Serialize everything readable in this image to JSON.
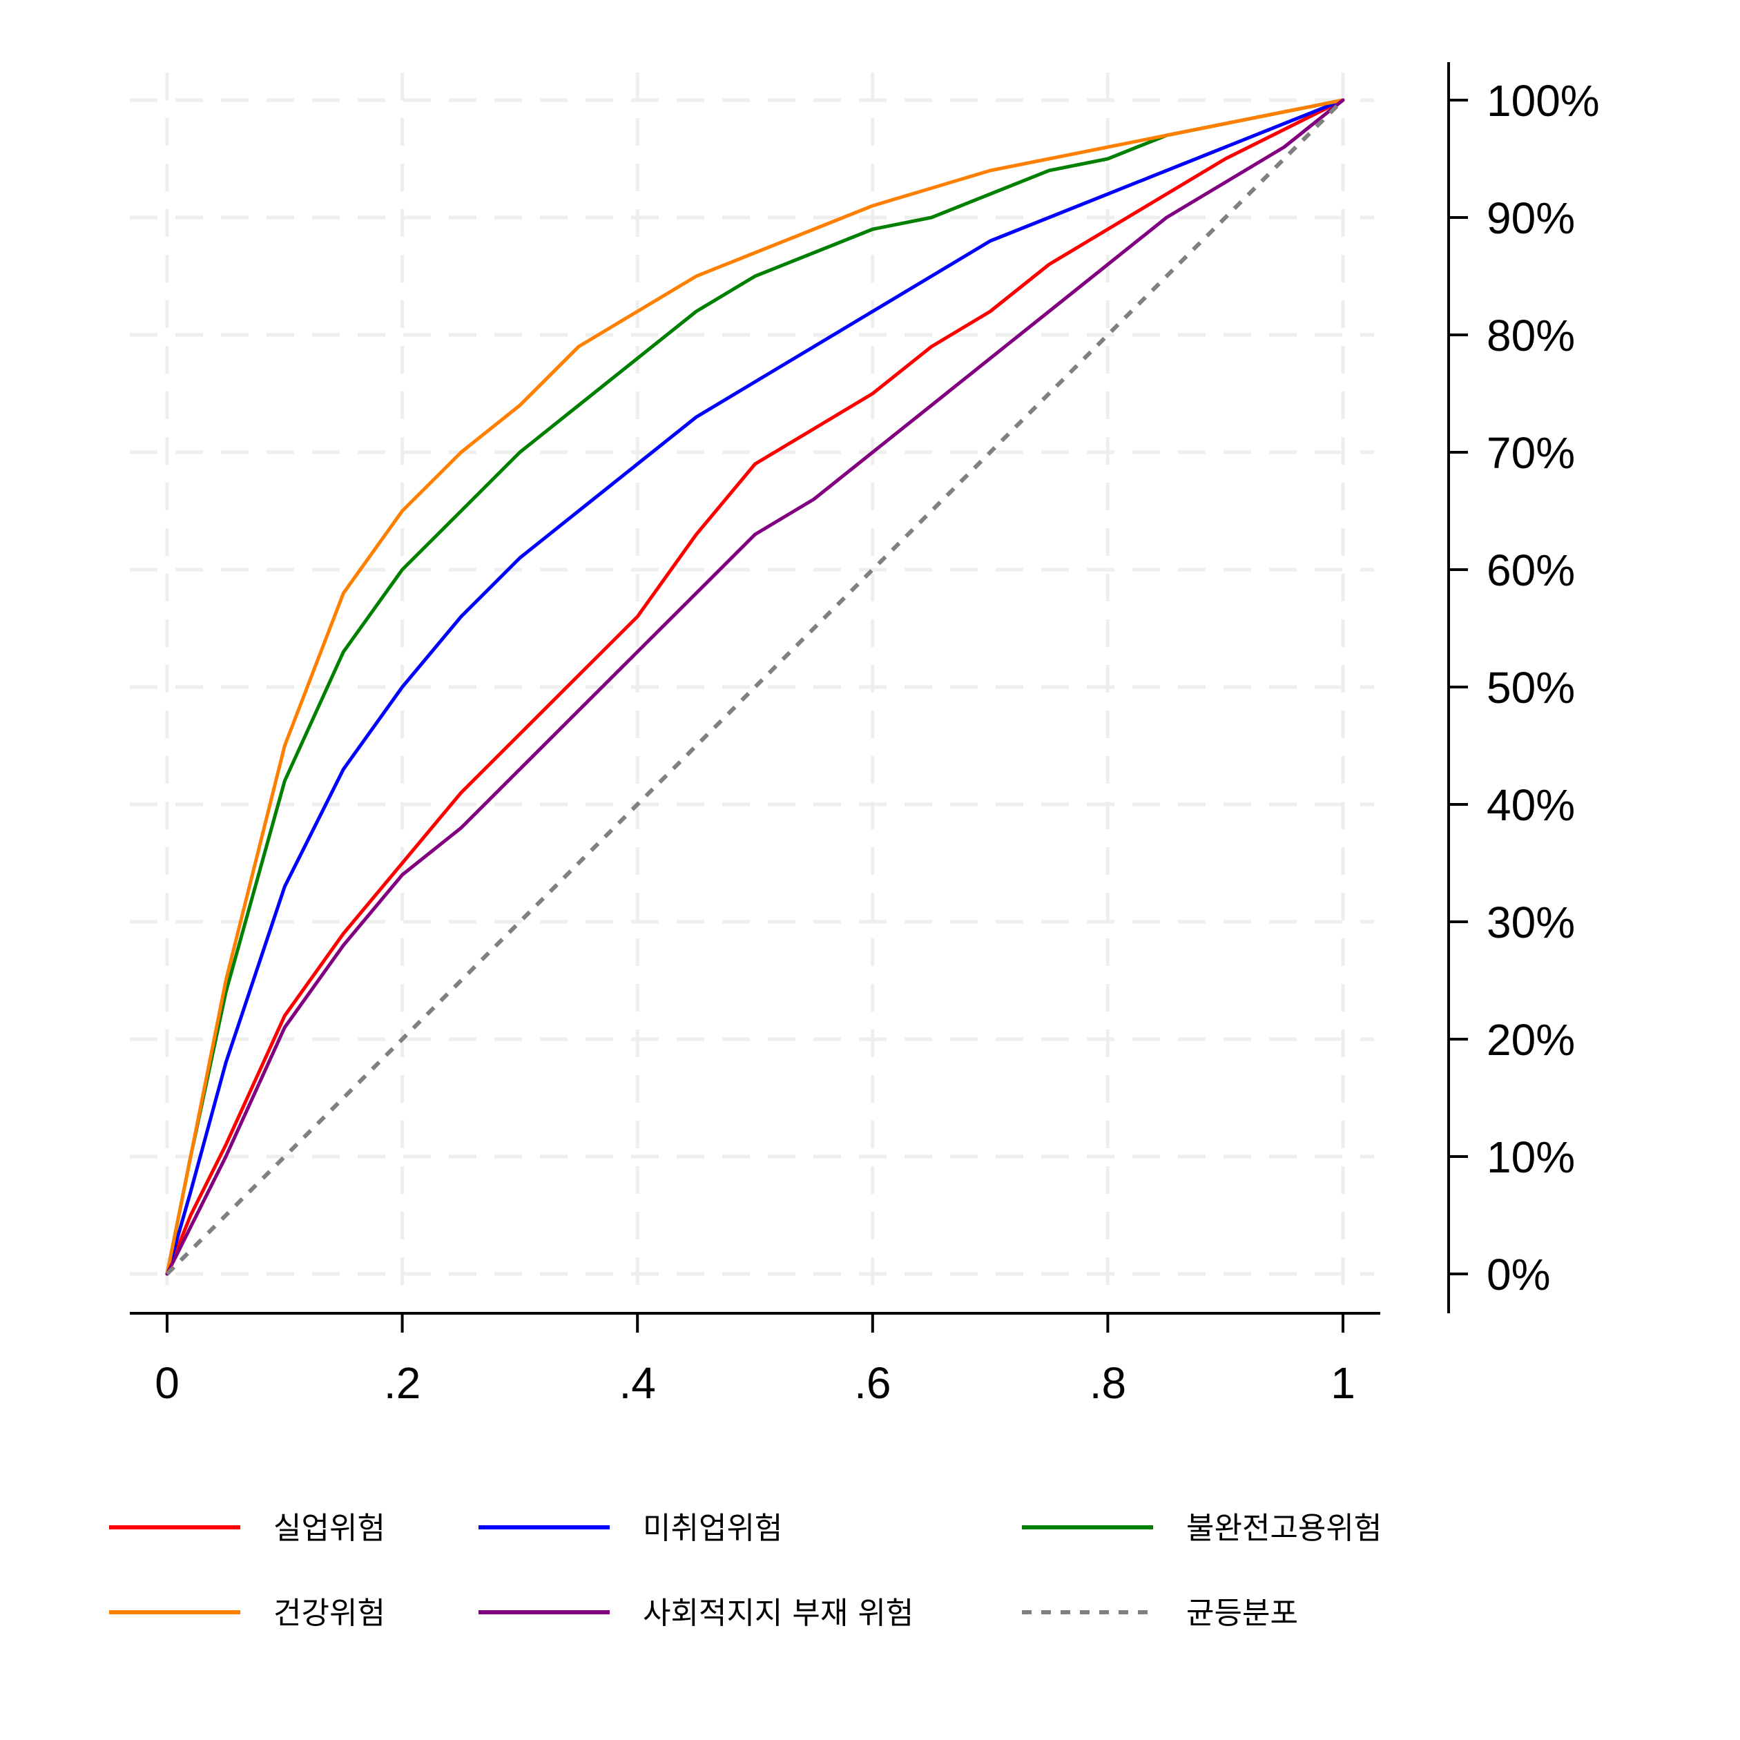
{
  "chart_data": {
    "type": "line",
    "title": "",
    "xlabel": "",
    "ylabel": "",
    "xlim": [
      0,
      1
    ],
    "ylim": [
      0,
      1
    ],
    "grid": true,
    "y_axis_side": "right",
    "legend_position": "bottom",
    "x_ticks": [
      {
        "value": 0,
        "label": "0"
      },
      {
        "value": 0.2,
        "label": ".2"
      },
      {
        "value": 0.4,
        "label": ".4"
      },
      {
        "value": 0.6,
        "label": ".6"
      },
      {
        "value": 0.8,
        "label": ".8"
      },
      {
        "value": 1,
        "label": "1"
      }
    ],
    "y_ticks": [
      {
        "value": 0,
        "label": "0%"
      },
      {
        "value": 0.1,
        "label": "10%"
      },
      {
        "value": 0.2,
        "label": "20%"
      },
      {
        "value": 0.3,
        "label": "30%"
      },
      {
        "value": 0.4,
        "label": "40%"
      },
      {
        "value": 0.5,
        "label": "50%"
      },
      {
        "value": 0.6,
        "label": "60%"
      },
      {
        "value": 0.7,
        "label": "70%"
      },
      {
        "value": 0.8,
        "label": "80%"
      },
      {
        "value": 0.9,
        "label": "90%"
      },
      {
        "value": 1,
        "label": "100%"
      }
    ],
    "x": [
      0,
      0.02,
      0.05,
      0.1,
      0.15,
      0.2,
      0.25,
      0.3,
      0.35,
      0.4,
      0.45,
      0.5,
      0.55,
      0.6,
      0.65,
      0.7,
      0.75,
      0.8,
      0.85,
      0.9,
      0.95,
      1
    ],
    "series": [
      {
        "name": "실업위험",
        "color": "#ff0000",
        "dashed": false,
        "values": [
          0,
          0.05,
          0.11,
          0.22,
          0.29,
          0.35,
          0.41,
          0.46,
          0.51,
          0.56,
          0.63,
          0.69,
          0.72,
          0.75,
          0.79,
          0.82,
          0.86,
          0.89,
          0.92,
          0.95,
          0.975,
          1
        ]
      },
      {
        "name": "미취업위험",
        "color": "#0000ff",
        "dashed": false,
        "values": [
          0,
          0.07,
          0.18,
          0.33,
          0.43,
          0.5,
          0.56,
          0.61,
          0.65,
          0.69,
          0.73,
          0.76,
          0.79,
          0.82,
          0.85,
          0.88,
          0.9,
          0.92,
          0.94,
          0.96,
          0.98,
          1
        ]
      },
      {
        "name": "불완전고용위험",
        "color": "#008000",
        "dashed": false,
        "values": [
          0,
          0.1,
          0.24,
          0.42,
          0.53,
          0.6,
          0.65,
          0.7,
          0.74,
          0.78,
          0.82,
          0.85,
          0.87,
          0.89,
          0.9,
          0.92,
          0.94,
          0.95,
          0.97,
          0.98,
          0.99,
          1
        ]
      },
      {
        "name": "건강위험",
        "color": "#ff8000",
        "dashed": false,
        "values": [
          0,
          0.1,
          0.25,
          0.45,
          0.58,
          0.65,
          0.7,
          0.74,
          0.79,
          0.82,
          0.85,
          0.87,
          0.89,
          0.91,
          0.925,
          0.94,
          0.95,
          0.96,
          0.97,
          0.98,
          0.99,
          1
        ]
      },
      {
        "name": "사회적지지 부재 위험",
        "color": "#800080",
        "dashed": false,
        "values": [
          0,
          0.04,
          0.1,
          0.21,
          0.28,
          0.34,
          0.38,
          0.43,
          0.48,
          0.53,
          0.58,
          0.63,
          0.66,
          0.7,
          0.74,
          0.78,
          0.82,
          0.86,
          0.9,
          0.93,
          0.96,
          1
        ]
      },
      {
        "name": "균등분포",
        "color": "#808080",
        "dashed": true,
        "values": [
          0,
          0.02,
          0.05,
          0.1,
          0.15,
          0.2,
          0.25,
          0.3,
          0.35,
          0.4,
          0.45,
          0.5,
          0.55,
          0.6,
          0.65,
          0.7,
          0.75,
          0.8,
          0.85,
          0.9,
          0.95,
          1
        ]
      }
    ],
    "legend_order": [
      0,
      1,
      2,
      3,
      4,
      5
    ]
  }
}
